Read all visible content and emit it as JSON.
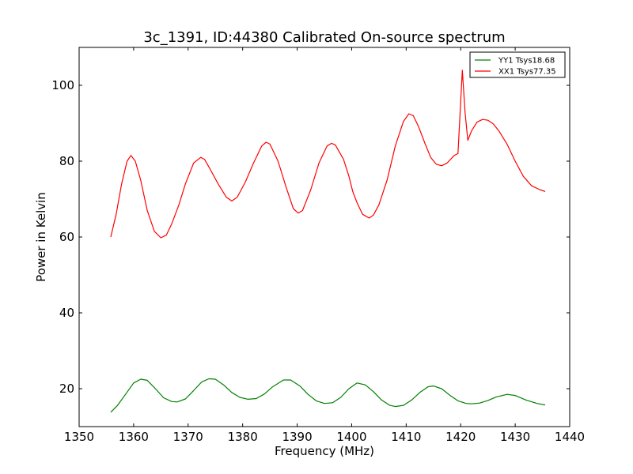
{
  "chart_data": {
    "type": "line",
    "title": "3c_1391, ID:44380 Calibrated On-source spectrum",
    "xlabel": "Frequency (MHz)",
    "ylabel": "Power in Kelvin",
    "xlim": [
      1350,
      1440
    ],
    "ylim": [
      10,
      110
    ],
    "xticks": [
      1350,
      1360,
      1370,
      1380,
      1390,
      1400,
      1410,
      1420,
      1430,
      1440
    ],
    "yticks": [
      20,
      40,
      60,
      80,
      100
    ],
    "grid": false,
    "legend_position": "top-right",
    "series": [
      {
        "name": "YY1 Tsys18.68",
        "color": "#008000",
        "x": [
          1355.8,
          1357.0,
          1358.5,
          1360.0,
          1361.3,
          1362.5,
          1364.0,
          1365.5,
          1367.0,
          1368.0,
          1369.5,
          1371.0,
          1372.5,
          1373.8,
          1375.0,
          1376.5,
          1378.0,
          1379.5,
          1381.0,
          1382.5,
          1384.0,
          1385.5,
          1387.5,
          1388.8,
          1390.5,
          1392.0,
          1393.5,
          1395.0,
          1396.5,
          1398.0,
          1399.5,
          1401.0,
          1402.5,
          1404.0,
          1405.5,
          1407.0,
          1408.0,
          1409.5,
          1411.0,
          1412.5,
          1414.0,
          1415.0,
          1416.5,
          1418.0,
          1419.5,
          1421.0,
          1422.0,
          1423.5,
          1425.0,
          1426.5,
          1428.5,
          1430.0,
          1432.0,
          1434.0,
          1435.5
        ],
        "values": [
          13.8,
          15.5,
          18.5,
          21.5,
          22.5,
          22.2,
          20.0,
          17.6,
          16.6,
          16.5,
          17.3,
          19.5,
          21.8,
          22.6,
          22.5,
          21.0,
          19.0,
          17.7,
          17.2,
          17.4,
          18.6,
          20.5,
          22.3,
          22.3,
          20.7,
          18.5,
          16.8,
          16.1,
          16.3,
          17.7,
          20.0,
          21.5,
          21.0,
          19.2,
          17.0,
          15.6,
          15.3,
          15.6,
          17.0,
          19.0,
          20.5,
          20.7,
          20.0,
          18.3,
          16.8,
          16.1,
          16.0,
          16.2,
          16.9,
          17.8,
          18.5,
          18.2,
          17.0,
          16.1,
          15.7
        ]
      },
      {
        "name": "XX1 Tsys77.35",
        "color": "#ff0000",
        "x": [
          1355.8,
          1356.8,
          1357.8,
          1358.8,
          1359.5,
          1360.3,
          1361.3,
          1362.5,
          1363.8,
          1365.0,
          1366.0,
          1367.0,
          1368.3,
          1369.5,
          1371.0,
          1372.3,
          1373.0,
          1374.0,
          1375.5,
          1377.0,
          1378.0,
          1379.0,
          1380.5,
          1382.0,
          1383.5,
          1384.3,
          1385.0,
          1386.5,
          1388.0,
          1389.3,
          1390.2,
          1391.0,
          1392.5,
          1394.0,
          1395.5,
          1396.3,
          1397.0,
          1398.5,
          1399.5,
          1400.2,
          1401.0,
          1402.0,
          1403.2,
          1404.0,
          1405.0,
          1406.5,
          1408.0,
          1409.5,
          1410.5,
          1411.3,
          1412.3,
          1413.5,
          1414.5,
          1415.5,
          1416.5,
          1417.5,
          1418.8,
          1419.5,
          1419.8,
          1420.3,
          1420.8,
          1421.3,
          1422.0,
          1423.0,
          1424.0,
          1425.0,
          1426.0,
          1427.0,
          1428.5,
          1430.0,
          1431.5,
          1433.0,
          1434.5,
          1435.5
        ],
        "values": [
          60.0,
          66.0,
          74.0,
          80.0,
          81.5,
          80.0,
          75.0,
          67.0,
          61.5,
          59.8,
          60.5,
          63.5,
          68.5,
          74.0,
          79.5,
          81.0,
          80.5,
          78.0,
          74.0,
          70.5,
          69.5,
          70.5,
          74.5,
          79.5,
          84.0,
          85.0,
          84.5,
          80.0,
          73.0,
          67.5,
          66.3,
          67.0,
          72.5,
          79.5,
          84.0,
          84.7,
          84.3,
          80.5,
          76.0,
          72.0,
          69.0,
          66.0,
          65.0,
          65.8,
          68.5,
          75.0,
          84.0,
          90.5,
          92.5,
          92.0,
          89.0,
          84.5,
          81.0,
          79.2,
          78.8,
          79.5,
          81.5,
          82.0,
          90.0,
          104.0,
          93.0,
          85.5,
          88.0,
          90.3,
          91.0,
          90.8,
          89.8,
          88.0,
          84.5,
          80.0,
          76.0,
          73.5,
          72.5,
          72.0
        ]
      }
    ]
  }
}
